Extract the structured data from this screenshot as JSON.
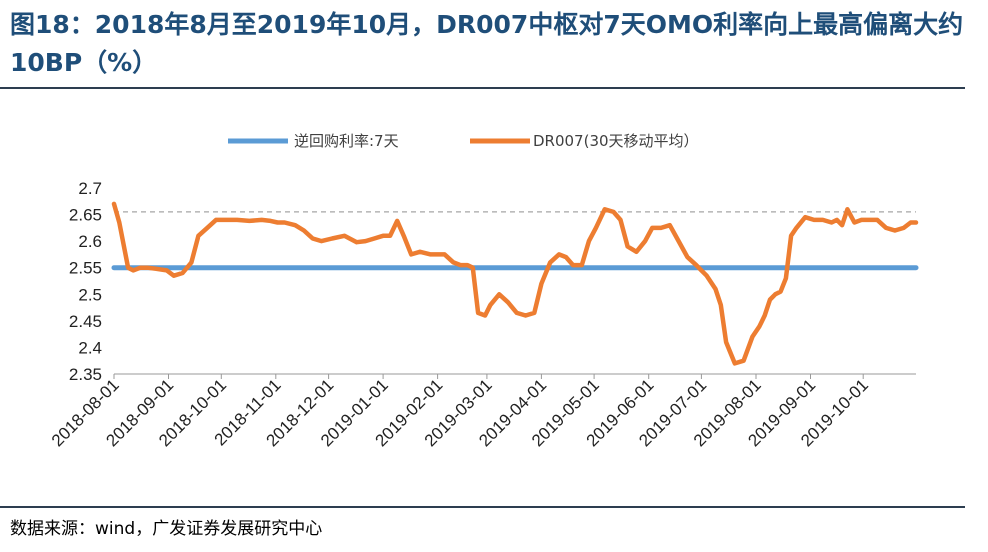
{
  "header": {
    "title": "图18：2018年8月至2019年10月，DR007中枢对7天OMO利率向上最高偏离大约10BP（%）"
  },
  "footer": {
    "source": "数据来源：wind，广发证券发展研究中心"
  },
  "chart_data": {
    "type": "line",
    "title": "2018年8月至2019年10月，DR007中枢对7天OMO利率向上最高偏离大约10BP（%）",
    "xlabel": "",
    "ylabel": "",
    "ylim": [
      2.35,
      2.7
    ],
    "yticks": [
      "2.7",
      "2.65",
      "2.6",
      "2.55",
      "2.5",
      "2.45",
      "2.4",
      "2.35"
    ],
    "xticks": [
      "2018-08-01",
      "2018-09-01",
      "2018-10-01",
      "2018-11-01",
      "2018-12-01",
      "2019-01-01",
      "2019-02-01",
      "2019-03-01",
      "2019-04-01",
      "2019-05-01",
      "2019-06-01",
      "2019-07-01",
      "2019-08-01",
      "2019-09-01",
      "2019-10-01"
    ],
    "grid": false,
    "legend_position": "top",
    "reference_line": {
      "value": 2.655,
      "style": "dashed"
    },
    "colors": {
      "omo": "#5b9bd5",
      "dr007": "#ed7d31",
      "reference": "#a6a6a6"
    },
    "series": [
      {
        "name": "逆回购利率:7天",
        "color": "#5b9bd5",
        "x": [
          "2018-08-01",
          "2019-10-31"
        ],
        "values": [
          2.55,
          2.55
        ]
      },
      {
        "name": "DR007(30天移动平均）",
        "color": "#ed7d31",
        "x": [
          "2018-08-01",
          "2018-08-04",
          "2018-08-09",
          "2018-08-12",
          "2018-08-16",
          "2018-08-20",
          "2018-08-25",
          "2018-08-31",
          "2018-09-04",
          "2018-09-09",
          "2018-09-14",
          "2018-09-18",
          "2018-09-23",
          "2018-09-28",
          "2018-10-03",
          "2018-10-10",
          "2018-10-17",
          "2018-10-24",
          "2018-10-29",
          "2018-11-02",
          "2018-11-06",
          "2018-11-12",
          "2018-11-17",
          "2018-11-22",
          "2018-11-27",
          "2018-12-03",
          "2018-12-10",
          "2018-12-17",
          "2018-12-22",
          "2018-12-27",
          "2019-01-01",
          "2019-01-05",
          "2019-01-09",
          "2019-01-13",
          "2019-01-17",
          "2019-01-22",
          "2019-01-28",
          "2019-02-01",
          "2019-02-05",
          "2019-02-10",
          "2019-02-14",
          "2019-02-18",
          "2019-02-21",
          "2019-02-24",
          "2019-02-28",
          "2019-03-03",
          "2019-03-08",
          "2019-03-13",
          "2019-03-18",
          "2019-03-23",
          "2019-03-28",
          "2019-04-01",
          "2019-04-06",
          "2019-04-11",
          "2019-04-15",
          "2019-04-19",
          "2019-04-24",
          "2019-04-28",
          "2019-05-02",
          "2019-05-07",
          "2019-05-12",
          "2019-05-16",
          "2019-05-20",
          "2019-05-25",
          "2019-05-30",
          "2019-06-03",
          "2019-06-08",
          "2019-06-13",
          "2019-06-18",
          "2019-06-23",
          "2019-06-28",
          "2019-07-01",
          "2019-07-04",
          "2019-07-07",
          "2019-07-09",
          "2019-07-12",
          "2019-07-15",
          "2019-07-20",
          "2019-07-25",
          "2019-07-30",
          "2019-08-03",
          "2019-08-06",
          "2019-08-09",
          "2019-08-12",
          "2019-08-15",
          "2019-08-18",
          "2019-08-21",
          "2019-08-24",
          "2019-08-29",
          "2019-09-03",
          "2019-09-08",
          "2019-09-13",
          "2019-09-16",
          "2019-09-19",
          "2019-09-22",
          "2019-09-26",
          "2019-09-30",
          "2019-10-04",
          "2019-10-09",
          "2019-10-14",
          "2019-10-19",
          "2019-10-24",
          "2019-10-28",
          "2019-10-31"
        ],
        "values": [
          2.67,
          2.635,
          2.55,
          2.545,
          2.55,
          2.55,
          2.548,
          2.545,
          2.535,
          2.54,
          2.56,
          2.61,
          2.625,
          2.64,
          2.64,
          2.64,
          2.638,
          2.64,
          2.638,
          2.635,
          2.635,
          2.63,
          2.62,
          2.605,
          2.6,
          2.605,
          2.61,
          2.598,
          2.6,
          2.605,
          2.61,
          2.61,
          2.638,
          2.608,
          2.575,
          2.58,
          2.575,
          2.575,
          2.575,
          2.56,
          2.555,
          2.555,
          2.55,
          2.465,
          2.46,
          2.48,
          2.5,
          2.485,
          2.465,
          2.46,
          2.465,
          2.52,
          2.56,
          2.575,
          2.57,
          2.555,
          2.555,
          2.6,
          2.625,
          2.66,
          2.655,
          2.64,
          2.59,
          2.58,
          2.6,
          2.625,
          2.625,
          2.63,
          2.6,
          2.57,
          2.555,
          2.545,
          2.535,
          2.52,
          2.51,
          2.48,
          2.41,
          2.37,
          2.375,
          2.42,
          2.44,
          2.46,
          2.49,
          2.5,
          2.505,
          2.53,
          2.61,
          2.625,
          2.645,
          2.64,
          2.64,
          2.635,
          2.64,
          2.63,
          2.66,
          2.635,
          2.64,
          2.64,
          2.64,
          2.625,
          2.62,
          2.625,
          2.635,
          2.635
        ]
      }
    ]
  }
}
